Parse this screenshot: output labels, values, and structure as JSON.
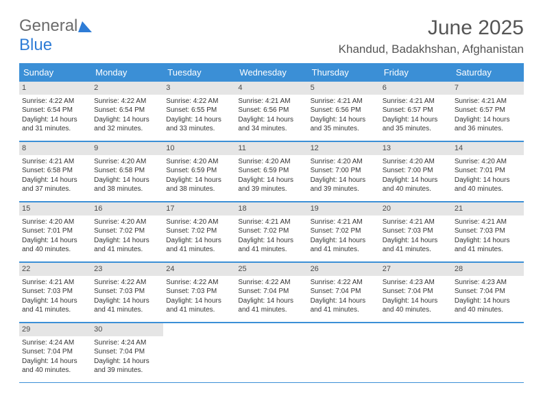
{
  "logo": {
    "part1": "General",
    "part2": "Blue"
  },
  "title": "June 2025",
  "location": "Khandud, Badakhshan, Afghanistan",
  "colors": {
    "header_bg": "#3b8fd6",
    "daynum_bg": "#e5e5e5",
    "text": "#333333",
    "title_text": "#555555"
  },
  "dow": [
    "Sunday",
    "Monday",
    "Tuesday",
    "Wednesday",
    "Thursday",
    "Friday",
    "Saturday"
  ],
  "weeks": [
    [
      {
        "n": "1",
        "sr": "4:22 AM",
        "ss": "6:54 PM",
        "dl": "14 hours and 31 minutes."
      },
      {
        "n": "2",
        "sr": "4:22 AM",
        "ss": "6:54 PM",
        "dl": "14 hours and 32 minutes."
      },
      {
        "n": "3",
        "sr": "4:22 AM",
        "ss": "6:55 PM",
        "dl": "14 hours and 33 minutes."
      },
      {
        "n": "4",
        "sr": "4:21 AM",
        "ss": "6:56 PM",
        "dl": "14 hours and 34 minutes."
      },
      {
        "n": "5",
        "sr": "4:21 AM",
        "ss": "6:56 PM",
        "dl": "14 hours and 35 minutes."
      },
      {
        "n": "6",
        "sr": "4:21 AM",
        "ss": "6:57 PM",
        "dl": "14 hours and 35 minutes."
      },
      {
        "n": "7",
        "sr": "4:21 AM",
        "ss": "6:57 PM",
        "dl": "14 hours and 36 minutes."
      }
    ],
    [
      {
        "n": "8",
        "sr": "4:21 AM",
        "ss": "6:58 PM",
        "dl": "14 hours and 37 minutes."
      },
      {
        "n": "9",
        "sr": "4:20 AM",
        "ss": "6:58 PM",
        "dl": "14 hours and 38 minutes."
      },
      {
        "n": "10",
        "sr": "4:20 AM",
        "ss": "6:59 PM",
        "dl": "14 hours and 38 minutes."
      },
      {
        "n": "11",
        "sr": "4:20 AM",
        "ss": "6:59 PM",
        "dl": "14 hours and 39 minutes."
      },
      {
        "n": "12",
        "sr": "4:20 AM",
        "ss": "7:00 PM",
        "dl": "14 hours and 39 minutes."
      },
      {
        "n": "13",
        "sr": "4:20 AM",
        "ss": "7:00 PM",
        "dl": "14 hours and 40 minutes."
      },
      {
        "n": "14",
        "sr": "4:20 AM",
        "ss": "7:01 PM",
        "dl": "14 hours and 40 minutes."
      }
    ],
    [
      {
        "n": "15",
        "sr": "4:20 AM",
        "ss": "7:01 PM",
        "dl": "14 hours and 40 minutes."
      },
      {
        "n": "16",
        "sr": "4:20 AM",
        "ss": "7:02 PM",
        "dl": "14 hours and 41 minutes."
      },
      {
        "n": "17",
        "sr": "4:20 AM",
        "ss": "7:02 PM",
        "dl": "14 hours and 41 minutes."
      },
      {
        "n": "18",
        "sr": "4:21 AM",
        "ss": "7:02 PM",
        "dl": "14 hours and 41 minutes."
      },
      {
        "n": "19",
        "sr": "4:21 AM",
        "ss": "7:02 PM",
        "dl": "14 hours and 41 minutes."
      },
      {
        "n": "20",
        "sr": "4:21 AM",
        "ss": "7:03 PM",
        "dl": "14 hours and 41 minutes."
      },
      {
        "n": "21",
        "sr": "4:21 AM",
        "ss": "7:03 PM",
        "dl": "14 hours and 41 minutes."
      }
    ],
    [
      {
        "n": "22",
        "sr": "4:21 AM",
        "ss": "7:03 PM",
        "dl": "14 hours and 41 minutes."
      },
      {
        "n": "23",
        "sr": "4:22 AM",
        "ss": "7:03 PM",
        "dl": "14 hours and 41 minutes."
      },
      {
        "n": "24",
        "sr": "4:22 AM",
        "ss": "7:03 PM",
        "dl": "14 hours and 41 minutes."
      },
      {
        "n": "25",
        "sr": "4:22 AM",
        "ss": "7:04 PM",
        "dl": "14 hours and 41 minutes."
      },
      {
        "n": "26",
        "sr": "4:22 AM",
        "ss": "7:04 PM",
        "dl": "14 hours and 41 minutes."
      },
      {
        "n": "27",
        "sr": "4:23 AM",
        "ss": "7:04 PM",
        "dl": "14 hours and 40 minutes."
      },
      {
        "n": "28",
        "sr": "4:23 AM",
        "ss": "7:04 PM",
        "dl": "14 hours and 40 minutes."
      }
    ],
    [
      {
        "n": "29",
        "sr": "4:24 AM",
        "ss": "7:04 PM",
        "dl": "14 hours and 40 minutes."
      },
      {
        "n": "30",
        "sr": "4:24 AM",
        "ss": "7:04 PM",
        "dl": "14 hours and 39 minutes."
      },
      null,
      null,
      null,
      null,
      null
    ]
  ],
  "labels": {
    "sunrise_prefix": "Sunrise: ",
    "sunset_prefix": "Sunset: ",
    "daylight_prefix": "Daylight: "
  }
}
